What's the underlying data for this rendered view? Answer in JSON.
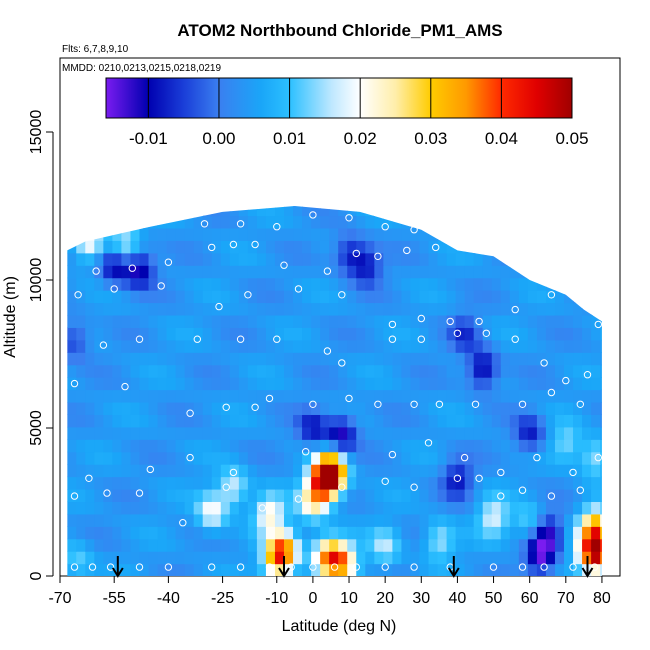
{
  "chart_data": {
    "type": "heatmap",
    "title": "ATOM2 Northbound Chloride_PM1_AMS",
    "notes": [
      "Flts: 6,7,8,9,10",
      "MMDD: 0210,0213,0215,0218,0219"
    ],
    "xlabel": "Latitude (deg N)",
    "ylabel": "Altitude (m)",
    "xlim": [
      -70,
      85
    ],
    "ylim": [
      0,
      17500
    ],
    "x_ticks": [
      -70,
      -55,
      -40,
      -25,
      -10,
      0,
      10,
      20,
      30,
      40,
      50,
      60,
      70,
      80
    ],
    "x_tick_labels": [
      "-70",
      "-55",
      "-40",
      "-25",
      "-10",
      "0",
      "10",
      "20",
      "30",
      "40",
      "50",
      "60",
      "70",
      "80"
    ],
    "y_ticks": [
      0,
      5000,
      10000,
      15000
    ],
    "y_tick_labels": [
      "0",
      "5000",
      "10000",
      "15000"
    ],
    "colorbar": {
      "range": [
        -0.016,
        0.05
      ],
      "ticks": [
        -0.01,
        0.0,
        0.01,
        0.02,
        0.03,
        0.04,
        0.05
      ],
      "tick_labels": [
        "-0.01",
        "0.00",
        "0.01",
        "0.02",
        "0.03",
        "0.04",
        "0.05"
      ],
      "stops": [
        {
          "v": -0.016,
          "color": "#7a1cf0"
        },
        {
          "v": -0.01,
          "color": "#0000b0"
        },
        {
          "v": -0.005,
          "color": "#1a3ed8"
        },
        {
          "v": 0.0,
          "color": "#3a7ff0"
        },
        {
          "v": 0.006,
          "color": "#1aa6f8"
        },
        {
          "v": 0.01,
          "color": "#2cc0ff"
        },
        {
          "v": 0.016,
          "color": "#bfe8ff"
        },
        {
          "v": 0.02,
          "color": "#ffffff"
        },
        {
          "v": 0.025,
          "color": "#ffeeaa"
        },
        {
          "v": 0.03,
          "color": "#ffcc00"
        },
        {
          "v": 0.035,
          "color": "#ff9900"
        },
        {
          "v": 0.04,
          "color": "#ff2a00"
        },
        {
          "v": 0.045,
          "color": "#e00000"
        },
        {
          "v": 0.05,
          "color": "#a00000"
        }
      ]
    },
    "data_extent": {
      "lat_range": [
        -68,
        80
      ],
      "alt_top": [
        [
          -68,
          11000
        ],
        [
          -63,
          11300
        ],
        [
          -45,
          11800
        ],
        [
          -25,
          12300
        ],
        [
          -5,
          12500
        ],
        [
          13,
          12300
        ],
        [
          30,
          11700
        ],
        [
          40,
          11000
        ],
        [
          50,
          10800
        ],
        [
          60,
          10000
        ],
        [
          70,
          9500
        ],
        [
          75,
          9000
        ],
        [
          80,
          8600
        ]
      ]
    },
    "background_value": 0.004,
    "features": [
      {
        "lat": -55,
        "alt": 10500,
        "value": -0.01
      },
      {
        "lat": -48,
        "alt": 10400,
        "value": -0.012
      },
      {
        "lat": -66,
        "alt": 8000,
        "value": -0.006
      },
      {
        "lat": -62,
        "alt": 11300,
        "value": 0.022
      },
      {
        "lat": -52,
        "alt": 11300,
        "value": 0.016
      },
      {
        "lat": 10,
        "alt": 10900,
        "value": -0.008
      },
      {
        "lat": 15,
        "alt": 10500,
        "value": -0.008
      },
      {
        "lat": 42,
        "alt": 8200,
        "value": -0.005
      },
      {
        "lat": 47,
        "alt": 7000,
        "value": -0.012
      },
      {
        "lat": 0,
        "alt": 5000,
        "value": -0.008
      },
      {
        "lat": 8,
        "alt": 4800,
        "value": -0.012
      },
      {
        "lat": 5,
        "alt": 3500,
        "value": 0.045
      },
      {
        "lat": 3,
        "alt": 3200,
        "value": 0.035
      },
      {
        "lat": 40,
        "alt": 3300,
        "value": -0.008
      },
      {
        "lat": 0,
        "alt": 2500,
        "value": 0.022
      },
      {
        "lat": -12,
        "alt": 2100,
        "value": 0.022
      },
      {
        "lat": 50,
        "alt": 2000,
        "value": 0.018
      },
      {
        "lat": -28,
        "alt": 2200,
        "value": 0.02
      },
      {
        "lat": -22,
        "alt": 3000,
        "value": 0.018
      },
      {
        "lat": -8,
        "alt": 900,
        "value": 0.03
      },
      {
        "lat": -10,
        "alt": 500,
        "value": 0.025
      },
      {
        "lat": 4,
        "alt": 700,
        "value": 0.03
      },
      {
        "lat": 8,
        "alt": 500,
        "value": 0.03
      },
      {
        "lat": 20,
        "alt": 1000,
        "value": 0.015
      },
      {
        "lat": 35,
        "alt": 1200,
        "value": 0.016
      },
      {
        "lat": -65,
        "alt": 500,
        "value": 0.012
      },
      {
        "lat": 63,
        "alt": 700,
        "value": -0.014
      },
      {
        "lat": 65,
        "alt": 1500,
        "value": -0.01
      },
      {
        "lat": 60,
        "alt": 1800,
        "value": 0.014
      },
      {
        "lat": 78,
        "alt": 1700,
        "value": 0.03
      },
      {
        "lat": 79,
        "alt": 800,
        "value": 0.04
      },
      {
        "lat": 76,
        "alt": 800,
        "value": 0.018
      },
      {
        "lat": 70,
        "alt": 4500,
        "value": 0.014
      },
      {
        "lat": 78,
        "alt": 4000,
        "value": 0.016
      },
      {
        "lat": 60,
        "alt": 4800,
        "value": -0.008
      }
    ],
    "flight_points": [
      [
        -66,
        300
      ],
      [
        -61,
        300
      ],
      [
        -56,
        300
      ],
      [
        -48,
        300
      ],
      [
        -40,
        300
      ],
      [
        -28,
        300
      ],
      [
        -20,
        300
      ],
      [
        -12,
        300
      ],
      [
        -6,
        300
      ],
      [
        0,
        300
      ],
      [
        6,
        300
      ],
      [
        12,
        300
      ],
      [
        20,
        300
      ],
      [
        28,
        300
      ],
      [
        38,
        300
      ],
      [
        50,
        300
      ],
      [
        58,
        300
      ],
      [
        64,
        300
      ],
      [
        72,
        300
      ],
      [
        78,
        300
      ],
      [
        -66,
        2700
      ],
      [
        -57,
        2800
      ],
      [
        -48,
        2800
      ],
      [
        -36,
        1800
      ],
      [
        -24,
        3000
      ],
      [
        -14,
        2300
      ],
      [
        -4,
        2600
      ],
      [
        8,
        3000
      ],
      [
        20,
        3200
      ],
      [
        28,
        3000
      ],
      [
        40,
        3300
      ],
      [
        46,
        3300
      ],
      [
        52,
        2700
      ],
      [
        58,
        2900
      ],
      [
        66,
        2700
      ],
      [
        74,
        2900
      ],
      [
        -62,
        3300
      ],
      [
        -45,
        3600
      ],
      [
        -34,
        4000
      ],
      [
        -22,
        3500
      ],
      [
        -2,
        4200
      ],
      [
        22,
        4100
      ],
      [
        32,
        4500
      ],
      [
        42,
        4000
      ],
      [
        52,
        3500
      ],
      [
        62,
        4000
      ],
      [
        72,
        3500
      ],
      [
        79,
        4000
      ],
      [
        -66,
        6500
      ],
      [
        -52,
        6400
      ],
      [
        -34,
        5500
      ],
      [
        -24,
        5700
      ],
      [
        -16,
        5700
      ],
      [
        -12,
        6000
      ],
      [
        0,
        5800
      ],
      [
        10,
        6000
      ],
      [
        18,
        5800
      ],
      [
        28,
        5800
      ],
      [
        35,
        5800
      ],
      [
        45,
        5800
      ],
      [
        58,
        5800
      ],
      [
        66,
        6200
      ],
      [
        74,
        5800
      ],
      [
        -58,
        7800
      ],
      [
        -48,
        8000
      ],
      [
        -32,
        8000
      ],
      [
        -20,
        8000
      ],
      [
        -10,
        8000
      ],
      [
        4,
        7600
      ],
      [
        8,
        7200
      ],
      [
        22,
        8000
      ],
      [
        30,
        8000
      ],
      [
        40,
        8200
      ],
      [
        48,
        8200
      ],
      [
        56,
        8000
      ],
      [
        64,
        7200
      ],
      [
        70,
        6600
      ],
      [
        76,
        6800
      ],
      [
        -65,
        9500
      ],
      [
        -55,
        9700
      ],
      [
        -42,
        9800
      ],
      [
        -26,
        9100
      ],
      [
        -18,
        9500
      ],
      [
        -4,
        9700
      ],
      [
        8,
        9500
      ],
      [
        22,
        8500
      ],
      [
        30,
        8700
      ],
      [
        38,
        8600
      ],
      [
        46,
        8600
      ],
      [
        56,
        9000
      ],
      [
        66,
        9500
      ],
      [
        75,
        9200
      ],
      [
        79,
        8500
      ],
      [
        -60,
        10300
      ],
      [
        -50,
        10400
      ],
      [
        -40,
        10600
      ],
      [
        -28,
        11100
      ],
      [
        -22,
        11200
      ],
      [
        -16,
        11200
      ],
      [
        -8,
        10500
      ],
      [
        4,
        10300
      ],
      [
        12,
        10900
      ],
      [
        18,
        10800
      ],
      [
        26,
        11000
      ],
      [
        34,
        11100
      ],
      [
        40,
        11300
      ],
      [
        -30,
        11900
      ],
      [
        -20,
        11900
      ],
      [
        -10,
        11800
      ],
      [
        0,
        12200
      ],
      [
        10,
        12100
      ],
      [
        20,
        11800
      ],
      [
        28,
        11700
      ],
      [
        36,
        11700
      ]
    ],
    "sounding_arrows_lat": [
      -54,
      -8,
      39,
      76
    ]
  }
}
